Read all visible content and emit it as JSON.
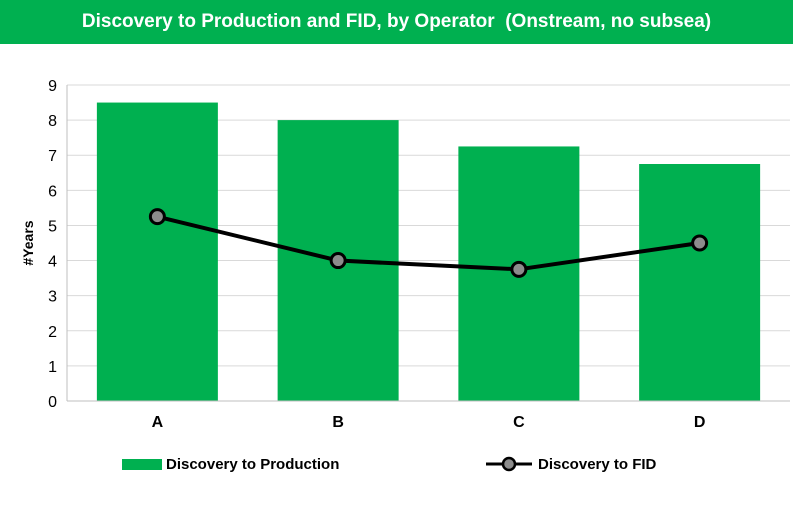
{
  "title": "Discovery to Production and FID, by Operator  (Onstream, no subsea)",
  "colors": {
    "title_bg": "#00b050",
    "bar": "#00b050",
    "line": "#000000",
    "marker_fill": "#8c8c8c",
    "grid": "#d9d9d9"
  },
  "chart_data": {
    "type": "bar",
    "categories": [
      "A",
      "B",
      "C",
      "D"
    ],
    "series": [
      {
        "name": "Discovery to Production",
        "type": "bar",
        "values": [
          8.5,
          8.0,
          7.25,
          6.75
        ]
      },
      {
        "name": "Discovery to FID",
        "type": "line",
        "values": [
          5.25,
          4.0,
          3.75,
          4.5
        ]
      }
    ],
    "ylabel": "#Years",
    "xlabel": "",
    "ylim": [
      0,
      9
    ],
    "yticks": [
      0,
      1,
      2,
      3,
      4,
      5,
      6,
      7,
      8,
      9
    ],
    "grid": true,
    "legend_position": "bottom"
  }
}
